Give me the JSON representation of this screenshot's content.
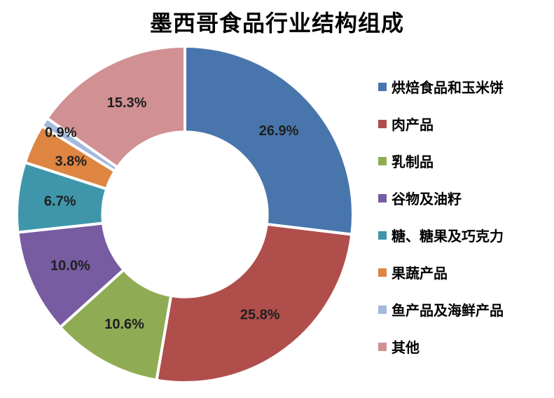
{
  "title": "墨西哥食品行业结构组成",
  "chart_data": {
    "type": "pie",
    "subtype": "donut",
    "title": "墨西哥食品行业结构组成",
    "categories": [
      "烘焙食品和玉米饼",
      "肉产品",
      "乳制品",
      "谷物及油籽",
      "糖、糖果及巧克力",
      "果蔬产品",
      "鱼产品及海鲜产品",
      "其他"
    ],
    "values": [
      26.9,
      25.8,
      10.6,
      10.0,
      6.7,
      3.8,
      0.9,
      15.3
    ],
    "labels": [
      "26.9%",
      "25.8%",
      "10.6%",
      "10.0%",
      "6.7%",
      "3.8%",
      "0.9%",
      "15.3%"
    ],
    "colors": [
      "#4876AC",
      "#B04E4B",
      "#8FAC54",
      "#775CA1",
      "#3F96AA",
      "#DE8542",
      "#A3B9DE",
      "#D19092"
    ],
    "legend_position": "right",
    "start_angle_deg": 0,
    "direction": "clockwise",
    "inner_radius_ratio": 0.49,
    "label_color": "#1f1f1f",
    "gap_color": "#ffffff",
    "grid": false
  }
}
